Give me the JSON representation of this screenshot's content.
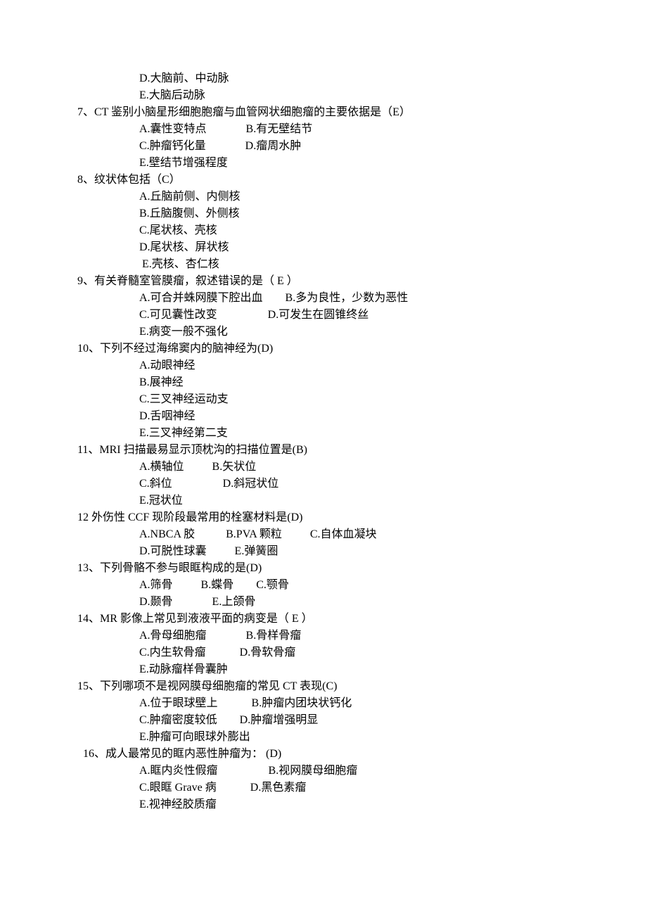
{
  "lines": [
    {
      "cls": "indent-opt",
      "text": "D.大脑前、中动脉"
    },
    {
      "cls": "indent-opt",
      "text": "E.大脑后动脉"
    },
    {
      "cls": "indent-q",
      "text": "7、CT 鉴别小脑星形细胞胞瘤与血管网状细胞瘤的主要依据是（E）"
    },
    {
      "cls": "indent-opt",
      "text": "A.囊性变特点              B.有无壁结节"
    },
    {
      "cls": "indent-opt",
      "text": "C.肿瘤钙化量              D.瘤周水肿"
    },
    {
      "cls": "indent-opt",
      "text": "E.壁结节增强程度"
    },
    {
      "cls": "indent-q",
      "text": "8、纹状体包括（C）"
    },
    {
      "cls": "indent-opt",
      "text": "A.丘脑前侧、内侧核"
    },
    {
      "cls": "indent-opt",
      "text": "B.丘脑腹侧、外侧核"
    },
    {
      "cls": "indent-opt",
      "text": "C.尾状核、壳核"
    },
    {
      "cls": "indent-opt",
      "text": "D.尾状核、屏状核"
    },
    {
      "cls": "indent-opt",
      "text": " E.壳核、杏仁核"
    },
    {
      "cls": "indent-q",
      "text": "9、有关脊髓室管膜瘤，叙述错误的是（ E ）"
    },
    {
      "cls": "indent-opt",
      "text": "A.可合并蛛网膜下腔出血        B.多为良性，少数为恶性"
    },
    {
      "cls": "indent-opt",
      "text": "C.可见囊性改变                  D.可发生在圆锥终丝"
    },
    {
      "cls": "indent-opt",
      "text": "E.病变一般不强化"
    },
    {
      "cls": "indent-q",
      "text": "10、下列不经过海绵窦内的脑神经为(D)"
    },
    {
      "cls": "indent-opt",
      "text": "A.动眼神经"
    },
    {
      "cls": "indent-opt",
      "text": "B.展神经"
    },
    {
      "cls": "indent-opt",
      "text": "C.三叉神经运动支"
    },
    {
      "cls": "indent-opt",
      "text": "D.舌咽神经"
    },
    {
      "cls": "indent-opt",
      "text": "E.三叉神经第二支"
    },
    {
      "cls": "indent-q",
      "text": "11、MRI 扫描最易显示顶枕沟的扫描位置是(B)"
    },
    {
      "cls": "indent-opt",
      "text": "A.横轴位          B.矢状位"
    },
    {
      "cls": "indent-opt",
      "text": "C.斜位                  D.斜冠状位"
    },
    {
      "cls": "indent-opt",
      "text": "E.冠状位"
    },
    {
      "cls": "indent-q",
      "text": "12 外伤性 CCF 现阶段最常用的栓塞材料是(D)"
    },
    {
      "cls": "indent-opt",
      "text": "A.NBCA 胶           B.PVA 颗粒          C.自体血凝块"
    },
    {
      "cls": "indent-opt",
      "text": "D.可脱性球囊          E.弹簧圈"
    },
    {
      "cls": "indent-q",
      "text": "13、下列骨骼不参与眼眶构成的是(D)"
    },
    {
      "cls": "indent-opt",
      "text": "A.筛骨          B.蝶骨        C.颚骨"
    },
    {
      "cls": "indent-opt",
      "text": "D.颞骨              E.上颌骨"
    },
    {
      "cls": "indent-q",
      "text": "14、MR 影像上常见到液液平面的病变是（ E ）"
    },
    {
      "cls": "indent-opt",
      "text": "A.骨母细胞瘤              B.骨样骨瘤"
    },
    {
      "cls": "indent-opt",
      "text": "C.内生软骨瘤            D.骨软骨瘤"
    },
    {
      "cls": "indent-opt",
      "text": "E.动脉瘤样骨囊肿"
    },
    {
      "cls": "indent-q",
      "text": "15、下列哪项不是视网膜母细胞瘤的常见 CT 表现(C)"
    },
    {
      "cls": "indent-opt",
      "text": "A.位于眼球壁上            B.肿瘤内团块状钙化"
    },
    {
      "cls": "indent-opt",
      "text": "C.肿瘤密度较低        D.肿瘤增强明显"
    },
    {
      "cls": "indent-opt",
      "text": "E.肿瘤可向眼球外膨出"
    },
    {
      "cls": "indent-q2",
      "text": "16、成人最常见的眶内恶性肿瘤为： (D)"
    },
    {
      "cls": "indent-opt",
      "text": "A.眶内炎性假瘤                  B.视网膜母细胞瘤"
    },
    {
      "cls": "indent-opt",
      "text": "C.眼眶 Grave 病            D.黑色素瘤"
    },
    {
      "cls": "indent-opt",
      "text": "E.视神经胶质瘤"
    }
  ]
}
